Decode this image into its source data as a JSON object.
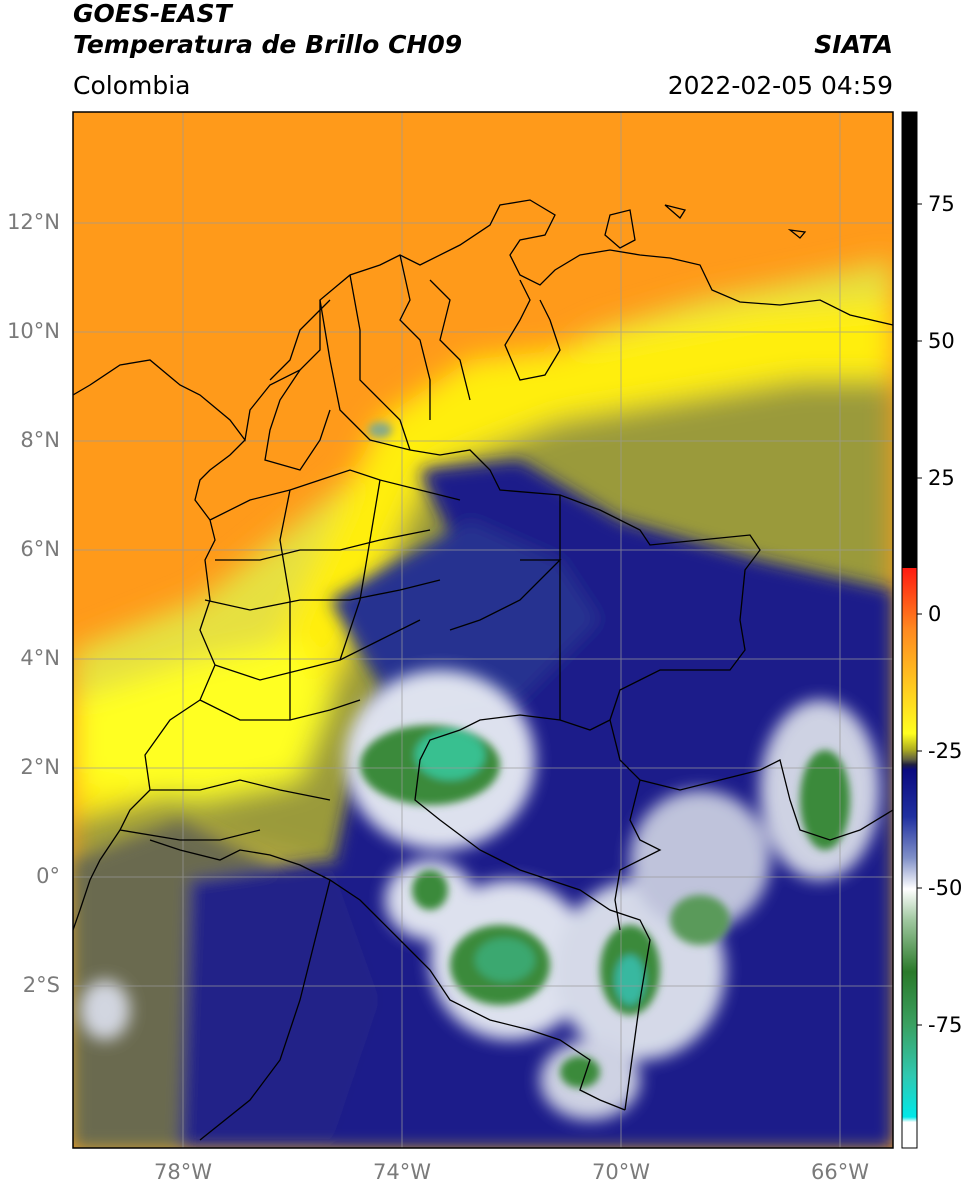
{
  "header": {
    "satellite": "GOES-EAST",
    "product": "Temperatura de Brillo CH09",
    "agency": "SIATA",
    "region": "Colombia",
    "timestamp": "2022-02-05 04:59"
  },
  "map": {
    "lat_ticks": [
      "12°N",
      "10°N",
      "8°N",
      "6°N",
      "4°N",
      "2°N",
      "0°",
      "2°S"
    ],
    "lon_ticks": [
      "78°W",
      "74°W",
      "70°W",
      "66°W"
    ]
  },
  "colorbar": {
    "ticks": [
      "75",
      "50",
      "25",
      "0",
      "-25",
      "-50",
      "-75"
    ],
    "colors": {
      "high": "#000000",
      "warm": "#ff3010",
      "orange": "#ff9a1a",
      "yellow": "#ffff10",
      "olive": "#777733",
      "navy": "#101080",
      "white": "#ffffff",
      "green": "#3a8a3a",
      "teal": "#30c0a0",
      "cyan": "#00e0e0"
    }
  }
}
